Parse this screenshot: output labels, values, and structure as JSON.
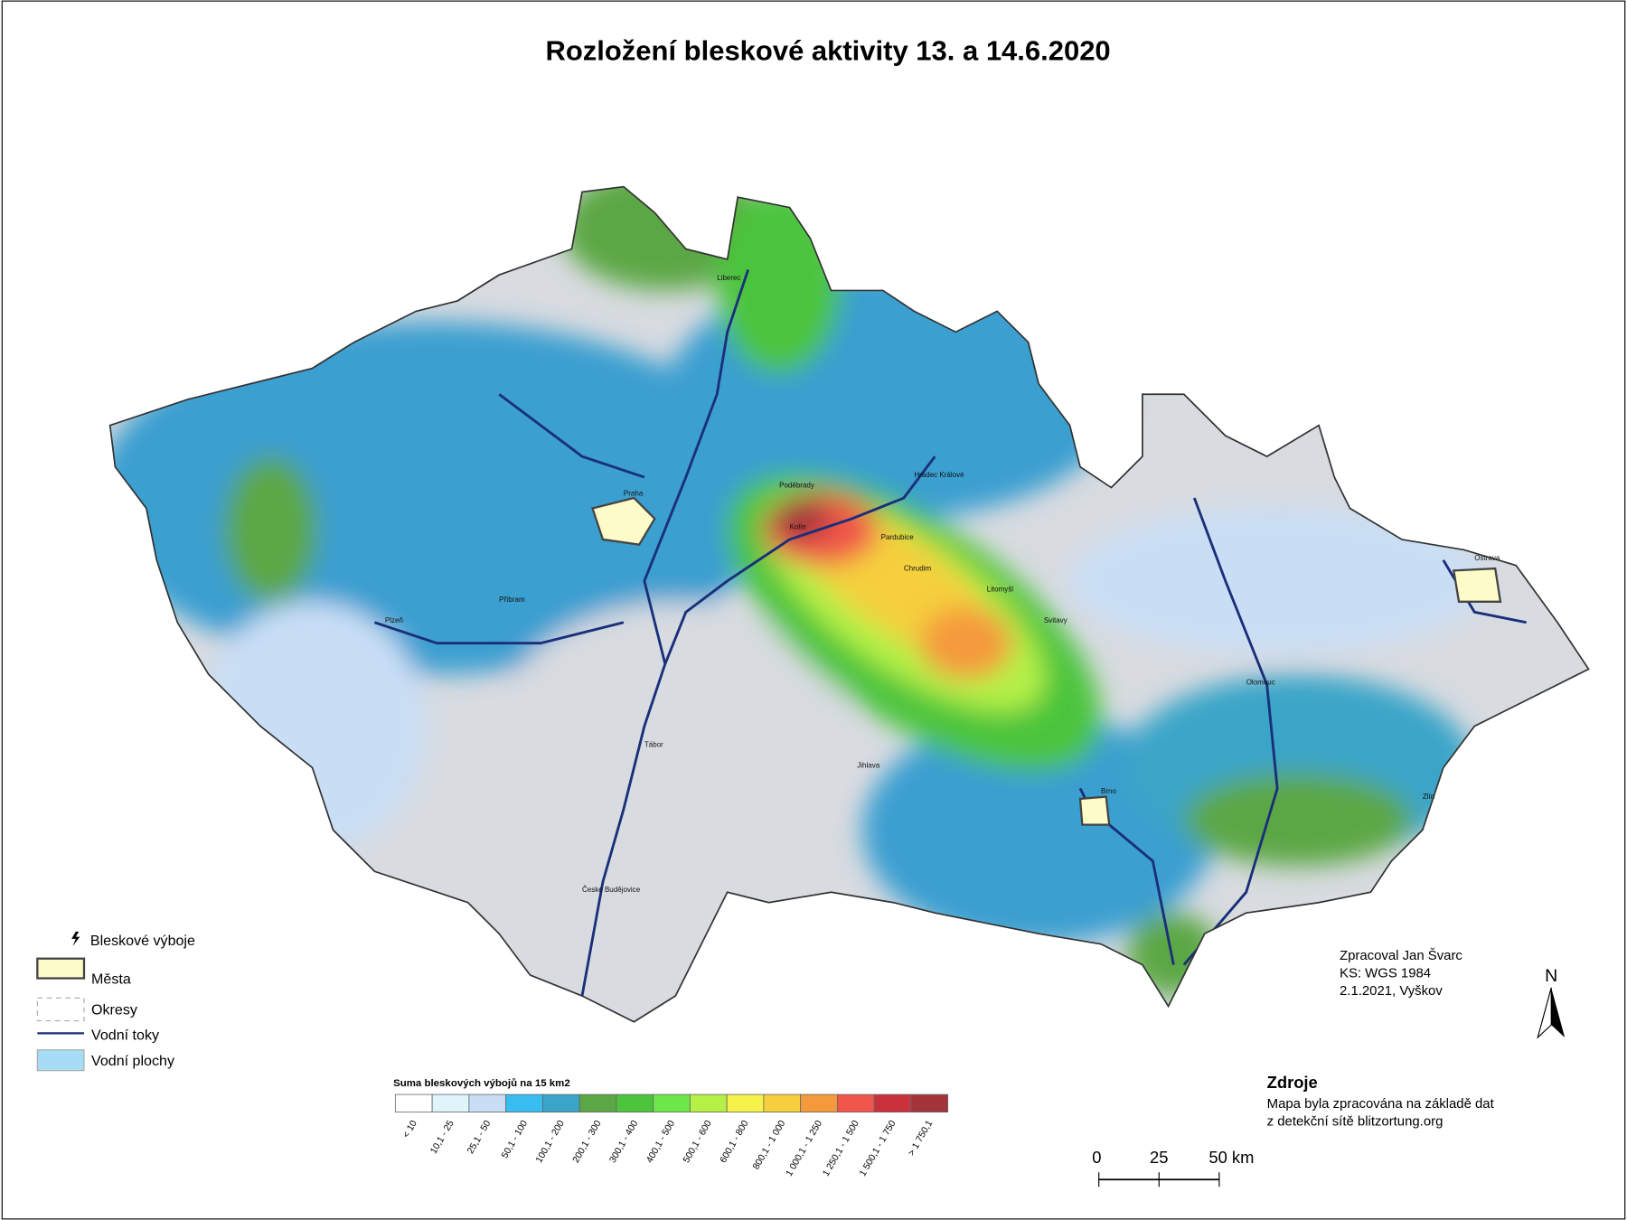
{
  "title": "Rozložení bleskové aktivity 13. a 14.6.2020",
  "legend": {
    "items": [
      "Bleskové výboje",
      "Města",
      "Okresy",
      "Vodní toky",
      "Vodní plochy"
    ]
  },
  "scale": {
    "title": "Suma bleskových výbojů na 15 km2",
    "classes": [
      {
        "label": "< 10",
        "color": "#ffffff"
      },
      {
        "label": "10,1 - 25",
        "color": "#dff4fb"
      },
      {
        "label": "25,1 - 50",
        "color": "#c9def5"
      },
      {
        "label": "50,1 - 100",
        "color": "#38bdf0"
      },
      {
        "label": "100,1 - 200",
        "color": "#3aa5c8"
      },
      {
        "label": "200,1 - 300",
        "color": "#5ba745"
      },
      {
        "label": "300,1 - 400",
        "color": "#4cc43c"
      },
      {
        "label": "400,1 - 500",
        "color": "#6de64a"
      },
      {
        "label": "500,1 - 600",
        "color": "#b4f046"
      },
      {
        "label": "600,1 - 800",
        "color": "#f5f34a"
      },
      {
        "label": "800,1 - 1 000",
        "color": "#f5cf3c"
      },
      {
        "label": "1 000,1 - 1 250",
        "color": "#f59a3c"
      },
      {
        "label": "1 250,1 - 1 500",
        "color": "#f0564a"
      },
      {
        "label": "1 500,1 - 1 750",
        "color": "#c9323c"
      },
      {
        "label": "> 1 750,1",
        "color": "#a3343c"
      }
    ]
  },
  "scale_bar": {
    "ticks": [
      "0",
      "25",
      "50 km"
    ]
  },
  "credits": [
    "Zpracoval Jan Švarc",
    "KS: WGS 1984",
    "2.1.2021, Vyškov"
  ],
  "sources": {
    "title": "Zdroje",
    "lines": [
      "Mapa byla zpracována na základě dat",
      "z detekční sítě blitzortung.org"
    ]
  },
  "north": "N",
  "cities": [
    "Praha",
    "Brno",
    "Pardubice",
    "Hradec Králové",
    "Ostrava",
    "Olomouc",
    "Plzeň",
    "Liberec",
    "Jihlava",
    "Kolín",
    "Poděbrady",
    "Chrudim",
    "Litomyšl",
    "Svitavy",
    "Tábor",
    "České Budějovice",
    "Zlín",
    "Příbram"
  ]
}
